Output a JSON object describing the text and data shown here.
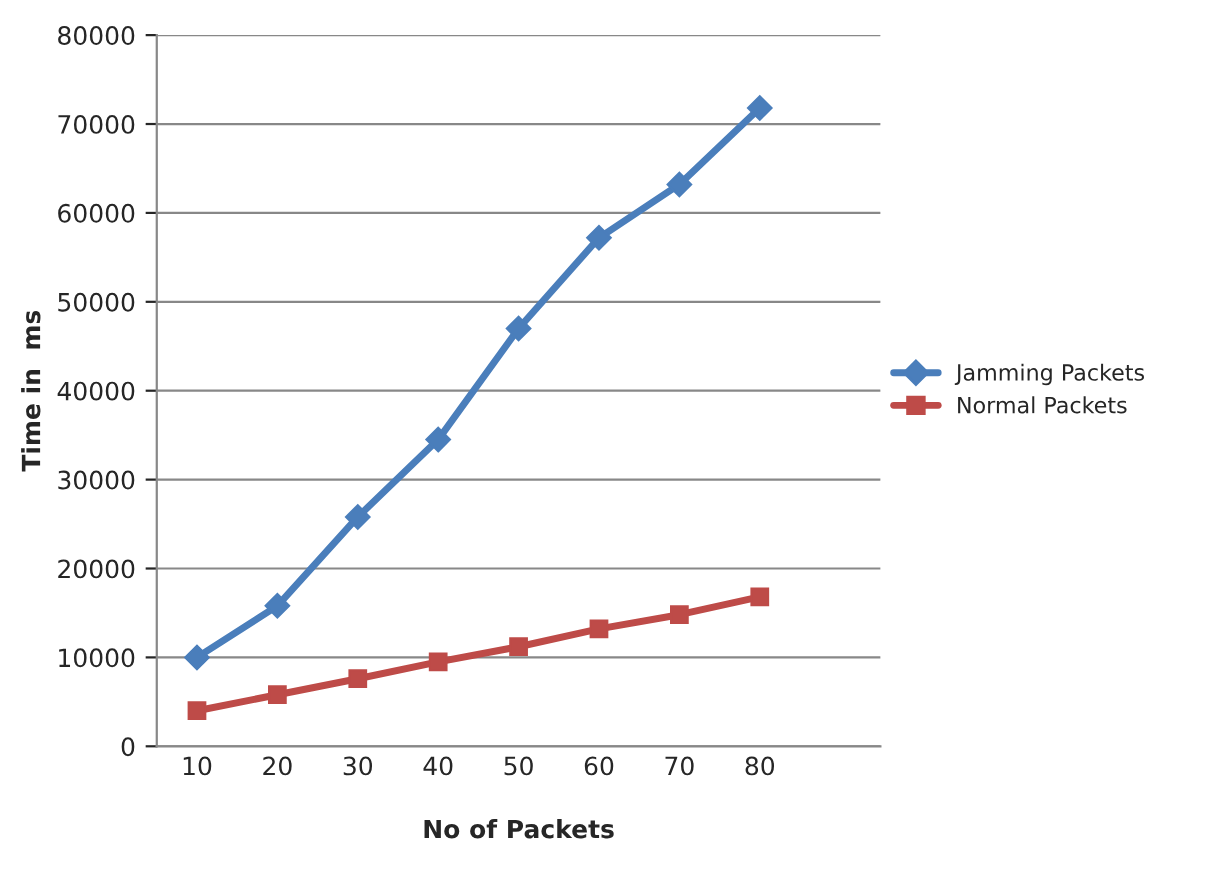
{
  "chart_data": {
    "type": "line",
    "xlabel": "No of Packets",
    "ylabel": "Time in  ms",
    "categories": [
      "10",
      "20",
      "30",
      "40",
      "50",
      "60",
      "70",
      "80",
      null
    ],
    "series": [
      {
        "name": "Jamming Packets",
        "color": "#4a7ebb",
        "marker": "diamond",
        "values": [
          10000,
          15800,
          25800,
          34500,
          47000,
          57200,
          63200,
          71800,
          null
        ]
      },
      {
        "name": "Normal Packets",
        "color": "#be4b48",
        "marker": "square",
        "values": [
          4000,
          5800,
          7600,
          9500,
          11200,
          13200,
          14800,
          16800,
          null
        ]
      }
    ],
    "ylim": [
      0,
      80000
    ],
    "yticks": [
      0,
      10000,
      20000,
      30000,
      40000,
      50000,
      60000,
      70000,
      80000
    ],
    "grid": "y",
    "legend": "right"
  }
}
